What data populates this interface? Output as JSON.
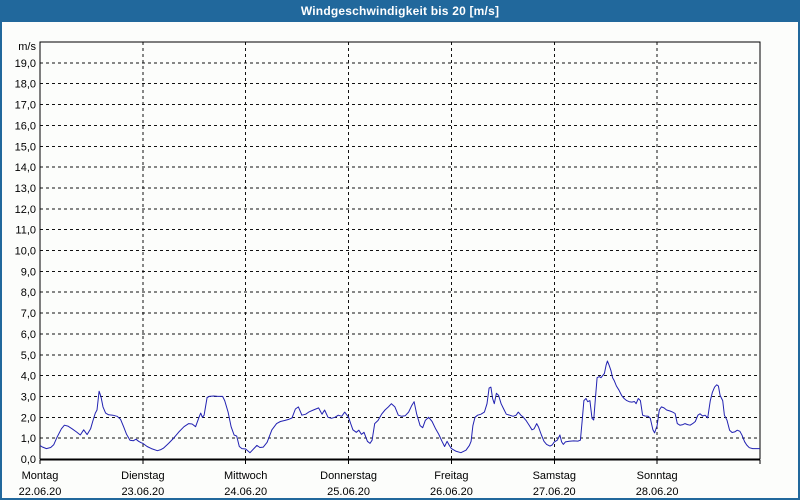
{
  "window": {
    "title": "Windgeschwindigkeit bis 20 [m/s]"
  },
  "colors": {
    "titlebar_bg": "#21689c",
    "titlebar_text": "#ffffff",
    "outer_border": "#21689c",
    "page_bg": "#fcfdfb",
    "grid": "#111111",
    "axis": "#000000",
    "line": "#2222b2",
    "label": "#000000"
  },
  "chart_data": {
    "type": "line",
    "title": "Windgeschwindigkeit bis 20 [m/s]",
    "ylabel": "m/s",
    "xlabel": "",
    "ylim": [
      0,
      20
    ],
    "xlim_hours": [
      0,
      168
    ],
    "grid": "dashed",
    "legend": "none",
    "y_tick_labels": [
      "0,0",
      "1,0",
      "2,0",
      "3,0",
      "4,0",
      "5,0",
      "6,0",
      "7,0",
      "8,0",
      "9,0",
      "10,0",
      "11,0",
      "12,0",
      "13,0",
      "14,0",
      "15,0",
      "16,0",
      "17,0",
      "18,0",
      "19,0"
    ],
    "x_days": [
      {
        "name": "Montag",
        "date": "22.06.20"
      },
      {
        "name": "Dienstag",
        "date": "23.06.20"
      },
      {
        "name": "Mittwoch",
        "date": "24.06.20"
      },
      {
        "name": "Donnerstag",
        "date": "25.06.20"
      },
      {
        "name": "Freitag",
        "date": "26.06.20"
      },
      {
        "name": "Samstag",
        "date": "27.06.20"
      },
      {
        "name": "Sonntag",
        "date": "28.06.20"
      }
    ],
    "series": [
      {
        "name": "Windgeschwindigkeit [m/s]",
        "color": "#2222b2",
        "points": [
          [
            0,
            0.65
          ],
          [
            0.5,
            0.58
          ],
          [
            1.5,
            0.5
          ],
          [
            2.5,
            0.55
          ],
          [
            3.2,
            0.68
          ],
          [
            4,
            1.05
          ],
          [
            5,
            1.45
          ],
          [
            5.7,
            1.62
          ],
          [
            6.5,
            1.58
          ],
          [
            7.5,
            1.45
          ],
          [
            8.5,
            1.3
          ],
          [
            9.4,
            1.15
          ],
          [
            10.2,
            1.4
          ],
          [
            11,
            1.17
          ],
          [
            11.8,
            1.45
          ],
          [
            12.3,
            1.8
          ],
          [
            12.9,
            2.2
          ],
          [
            13.3,
            2.35
          ],
          [
            13.8,
            3.25
          ],
          [
            14.2,
            3.0
          ],
          [
            14.7,
            2.5
          ],
          [
            15.3,
            2.2
          ],
          [
            16,
            2.12
          ],
          [
            17,
            2.1
          ],
          [
            18,
            2.05
          ],
          [
            18.8,
            1.9
          ],
          [
            19.5,
            1.55
          ],
          [
            20.2,
            1.18
          ],
          [
            21,
            0.9
          ],
          [
            21.8,
            0.88
          ],
          [
            22.4,
            0.95
          ],
          [
            23,
            0.85
          ],
          [
            23.6,
            0.78
          ],
          [
            24,
            0.75
          ],
          [
            25,
            0.6
          ],
          [
            26,
            0.5
          ],
          [
            27.4,
            0.4
          ],
          [
            28.2,
            0.45
          ],
          [
            28.8,
            0.52
          ],
          [
            30,
            0.75
          ],
          [
            31.2,
            1.0
          ],
          [
            32.4,
            1.3
          ],
          [
            33.6,
            1.55
          ],
          [
            34.7,
            1.7
          ],
          [
            35.5,
            1.68
          ],
          [
            36.3,
            1.55
          ],
          [
            37.1,
            2.0
          ],
          [
            37.5,
            2.2
          ],
          [
            37.9,
            2.0
          ],
          [
            38.3,
            2.1
          ],
          [
            39,
            2.95
          ],
          [
            39.5,
            3.0
          ],
          [
            40.5,
            3.02
          ],
          [
            41.5,
            3.0
          ],
          [
            42.6,
            3.0
          ],
          [
            43.1,
            2.8
          ],
          [
            43.9,
            2.25
          ],
          [
            44.6,
            1.55
          ],
          [
            45.3,
            1.15
          ],
          [
            45.9,
            1.1
          ],
          [
            46.5,
            0.6
          ],
          [
            47.1,
            0.5
          ],
          [
            48,
            0.48
          ],
          [
            49,
            0.3
          ],
          [
            50.6,
            0.65
          ],
          [
            51.3,
            0.55
          ],
          [
            52.1,
            0.57
          ],
          [
            53,
            0.8
          ],
          [
            54.1,
            1.4
          ],
          [
            55.2,
            1.7
          ],
          [
            56.1,
            1.8
          ],
          [
            57.2,
            1.85
          ],
          [
            58,
            1.9
          ],
          [
            58.8,
            1.97
          ],
          [
            59.6,
            2.4
          ],
          [
            60.3,
            2.5
          ],
          [
            61.1,
            2.1
          ],
          [
            62,
            2.15
          ],
          [
            62.7,
            2.25
          ],
          [
            63.8,
            2.35
          ],
          [
            65,
            2.45
          ],
          [
            65.8,
            2.15
          ],
          [
            66.4,
            2.35
          ],
          [
            67.2,
            2.0
          ],
          [
            68,
            1.95
          ],
          [
            68.8,
            2.0
          ],
          [
            69.6,
            2.1
          ],
          [
            70.4,
            2.05
          ],
          [
            71.1,
            2.25
          ],
          [
            72,
            2.0
          ],
          [
            72.5,
            1.7
          ],
          [
            73,
            1.4
          ],
          [
            73.8,
            1.28
          ],
          [
            74.4,
            1.38
          ],
          [
            75,
            1.18
          ],
          [
            75.6,
            1.28
          ],
          [
            76.4,
            0.85
          ],
          [
            77,
            0.75
          ],
          [
            77.5,
            0.9
          ],
          [
            78.1,
            1.7
          ],
          [
            78.9,
            1.85
          ],
          [
            79.7,
            2.15
          ],
          [
            80.5,
            2.35
          ],
          [
            81.3,
            2.5
          ],
          [
            82,
            2.65
          ],
          [
            82.8,
            2.5
          ],
          [
            83.6,
            2.1
          ],
          [
            84.4,
            2.05
          ],
          [
            85.2,
            2.07
          ],
          [
            86,
            2.25
          ],
          [
            86.7,
            2.55
          ],
          [
            87.3,
            2.75
          ],
          [
            87.9,
            2.15
          ],
          [
            88.7,
            1.6
          ],
          [
            89.3,
            1.5
          ],
          [
            89.9,
            1.85
          ],
          [
            90.7,
            2.0
          ],
          [
            91.5,
            1.8
          ],
          [
            92.3,
            1.45
          ],
          [
            93,
            1.2
          ],
          [
            93.8,
            0.85
          ],
          [
            94.4,
            0.6
          ],
          [
            95,
            0.85
          ],
          [
            95.5,
            0.65
          ],
          [
            96,
            0.5
          ],
          [
            97,
            0.38
          ],
          [
            98.2,
            0.3
          ],
          [
            99.4,
            0.42
          ],
          [
            100.2,
            0.65
          ],
          [
            100.6,
            0.85
          ],
          [
            101,
            1.6
          ],
          [
            101.5,
            2.0
          ],
          [
            102.1,
            2.1
          ],
          [
            102.9,
            2.15
          ],
          [
            103.7,
            2.25
          ],
          [
            104.3,
            2.65
          ],
          [
            104.8,
            3.4
          ],
          [
            105.2,
            3.45
          ],
          [
            105.6,
            2.9
          ],
          [
            106,
            2.65
          ],
          [
            106.5,
            3.15
          ],
          [
            107,
            3.05
          ],
          [
            107.6,
            2.65
          ],
          [
            108.2,
            2.4
          ],
          [
            108.8,
            2.15
          ],
          [
            109.6,
            2.1
          ],
          [
            110.4,
            2.05
          ],
          [
            111.1,
            2.1
          ],
          [
            111.6,
            2.25
          ],
          [
            112.2,
            2.1
          ],
          [
            112.8,
            2.0
          ],
          [
            113.4,
            1.85
          ],
          [
            114.2,
            1.6
          ],
          [
            114.8,
            1.4
          ],
          [
            115.3,
            1.45
          ],
          [
            115.9,
            1.7
          ],
          [
            116.3,
            1.55
          ],
          [
            117,
            1.15
          ],
          [
            117.6,
            0.85
          ],
          [
            118.2,
            0.7
          ],
          [
            119,
            0.62
          ],
          [
            119.5,
            0.67
          ],
          [
            120,
            0.82
          ],
          [
            120.7,
            0.9
          ],
          [
            121.3,
            1.15
          ],
          [
            121.7,
            0.82
          ],
          [
            122.1,
            0.7
          ],
          [
            122.6,
            0.82
          ],
          [
            123.5,
            0.85
          ],
          [
            124.5,
            0.87
          ],
          [
            125.5,
            0.86
          ],
          [
            126.1,
            0.9
          ],
          [
            126.5,
            1.8
          ],
          [
            126.9,
            2.8
          ],
          [
            127.4,
            2.9
          ],
          [
            127.8,
            2.75
          ],
          [
            128.3,
            2.8
          ],
          [
            128.8,
            1.95
          ],
          [
            129.2,
            1.87
          ],
          [
            129.6,
            2.9
          ],
          [
            130,
            3.9
          ],
          [
            130.5,
            3.95
          ],
          [
            130.9,
            3.9
          ],
          [
            131.3,
            4.0
          ],
          [
            131.7,
            4.1
          ],
          [
            132.1,
            4.5
          ],
          [
            132.4,
            4.7
          ],
          [
            132.8,
            4.5
          ],
          [
            133.2,
            4.25
          ],
          [
            133.6,
            3.9
          ],
          [
            134,
            3.75
          ],
          [
            134.5,
            3.5
          ],
          [
            135.1,
            3.3
          ],
          [
            135.7,
            3.05
          ],
          [
            136.3,
            2.9
          ],
          [
            136.9,
            2.8
          ],
          [
            137.5,
            2.75
          ],
          [
            138.1,
            2.73
          ],
          [
            138.7,
            2.76
          ],
          [
            139.1,
            2.65
          ],
          [
            139.6,
            2.9
          ],
          [
            140.1,
            2.8
          ],
          [
            140.6,
            2.1
          ],
          [
            141.2,
            2.06
          ],
          [
            141.9,
            2.05
          ],
          [
            142.4,
            1.95
          ],
          [
            143,
            1.4
          ],
          [
            143.4,
            1.25
          ],
          [
            144,
            1.6
          ],
          [
            144.5,
            2.35
          ],
          [
            145,
            2.5
          ],
          [
            145.6,
            2.45
          ],
          [
            146.2,
            2.35
          ],
          [
            147,
            2.3
          ],
          [
            147.6,
            2.25
          ],
          [
            148.2,
            2.18
          ],
          [
            148.7,
            1.7
          ],
          [
            149.3,
            1.62
          ],
          [
            150,
            1.65
          ],
          [
            150.5,
            1.7
          ],
          [
            151.1,
            1.65
          ],
          [
            151.7,
            1.62
          ],
          [
            152.3,
            1.7
          ],
          [
            152.9,
            1.8
          ],
          [
            153.5,
            2.1
          ],
          [
            154,
            2.17
          ],
          [
            154.6,
            2.06
          ],
          [
            155.2,
            2.1
          ],
          [
            155.8,
            1.97
          ],
          [
            156.4,
            2.8
          ],
          [
            156.9,
            3.2
          ],
          [
            157.4,
            3.45
          ],
          [
            157.9,
            3.56
          ],
          [
            158.3,
            3.5
          ],
          [
            158.7,
            3.05
          ],
          [
            159.3,
            2.8
          ],
          [
            159.7,
            2.1
          ],
          [
            160.3,
            1.86
          ],
          [
            160.9,
            1.38
          ],
          [
            161.5,
            1.27
          ],
          [
            162.1,
            1.3
          ],
          [
            162.7,
            1.38
          ],
          [
            163.3,
            1.33
          ],
          [
            163.8,
            1.14
          ],
          [
            164.4,
            0.83
          ],
          [
            164.9,
            0.67
          ],
          [
            165.5,
            0.54
          ],
          [
            166.3,
            0.5
          ],
          [
            167.2,
            0.5
          ],
          [
            168,
            0.5
          ]
        ]
      }
    ]
  }
}
